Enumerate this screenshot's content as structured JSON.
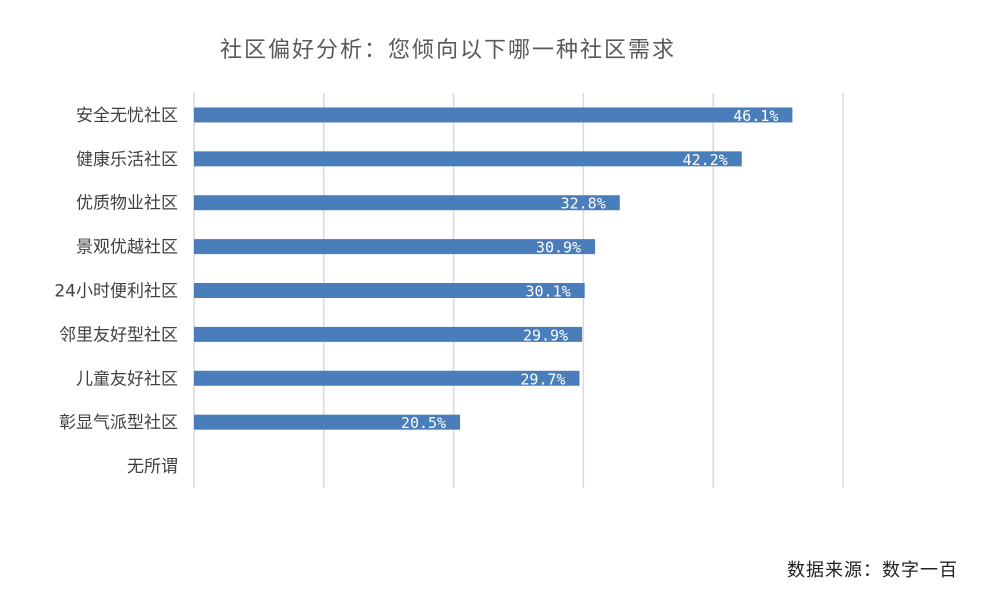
{
  "chart_data": {
    "type": "bar",
    "orientation": "horizontal",
    "title": "社区偏好分析：您倾向以下哪一种社区需求",
    "categories": [
      "安全无忧社区",
      "健康乐活社区",
      "优质物业社区",
      "景观优越社区",
      "24小时便利社区",
      "邻里友好型社区",
      "儿童友好社区",
      "彰显气派型社区",
      "无所谓"
    ],
    "values": [
      46.1,
      42.2,
      32.8,
      30.9,
      30.1,
      29.9,
      29.7,
      20.5,
      0
    ],
    "data_labels": [
      "46.1%",
      "42.2%",
      "32.8%",
      "30.9%",
      "30.1%",
      "29.9%",
      "29.7%",
      "20.5%",
      ""
    ],
    "xlim": [
      0,
      50
    ],
    "grid_step": 10,
    "grid": true,
    "xlabel": "",
    "ylabel": "",
    "bar_color": "#4a7ebb",
    "grid_color": "#d9d9d9"
  },
  "source": "数据来源：数字一百"
}
